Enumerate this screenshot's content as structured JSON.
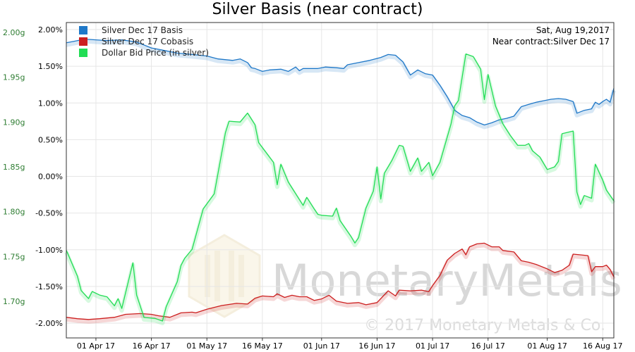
{
  "chart_data": {
    "type": "line",
    "title": "Silver Basis (near contract)",
    "annotation": {
      "date": "Sat, Aug 19,2017",
      "contract": "Near contract:Silver Dec 17"
    },
    "legend_position": "top-left",
    "grid": true,
    "watermark": {
      "brand": "MonetaryMetals",
      "copyright": "© 2017 Monetary Metals & Co."
    },
    "x_ticks": [
      "01 Apr 17",
      "16 Apr 17",
      "01 May 17",
      "16 May 17",
      "01 Jun 17",
      "16 Jun 17",
      "01 Jul 17",
      "16 Jul 17",
      "01 Aug 17",
      "16 Aug 17"
    ],
    "x_range": [
      "2017-03-24",
      "2017-08-19"
    ],
    "y_right": {
      "ticks": [
        "2.00%",
        "1.50%",
        "1.00%",
        "0.50%",
        "0.00%",
        "-0.50%",
        "-1.00%",
        "-1.50%",
        "-2.00%"
      ],
      "range": [
        -2.0,
        2.0
      ]
    },
    "y_left": {
      "ticks": [
        "2.00g",
        "1.95g",
        "1.90g",
        "1.85g",
        "1.80g",
        "1.75g",
        "1.70g"
      ],
      "range": [
        1.685,
        2.005
      ]
    },
    "series": [
      {
        "name": "Silver Dec 17 Basis",
        "color": "#1f78c8",
        "axis": "right",
        "points": [
          [
            "2017-03-24",
            1.82
          ],
          [
            "2017-03-26",
            1.84
          ],
          [
            "2017-03-29",
            1.87
          ],
          [
            "2017-04-01",
            1.86
          ],
          [
            "2017-04-04",
            1.85
          ],
          [
            "2017-04-08",
            1.86
          ],
          [
            "2017-04-12",
            1.83
          ],
          [
            "2017-04-16",
            1.75
          ],
          [
            "2017-04-19",
            1.72
          ],
          [
            "2017-04-23",
            1.68
          ],
          [
            "2017-04-27",
            1.66
          ],
          [
            "2017-05-01",
            1.64
          ],
          [
            "2017-05-04",
            1.6
          ],
          [
            "2017-05-08",
            1.58
          ],
          [
            "2017-05-10",
            1.6
          ],
          [
            "2017-05-12",
            1.55
          ],
          [
            "2017-05-13",
            1.48
          ],
          [
            "2017-05-14",
            1.47
          ],
          [
            "2017-05-16",
            1.43
          ],
          [
            "2017-05-18",
            1.45
          ],
          [
            "2017-05-21",
            1.46
          ],
          [
            "2017-05-23",
            1.43
          ],
          [
            "2017-05-25",
            1.49
          ],
          [
            "2017-05-26",
            1.44
          ],
          [
            "2017-05-27",
            1.47
          ],
          [
            "2017-05-31",
            1.47
          ],
          [
            "2017-06-02",
            1.49
          ],
          [
            "2017-06-05",
            1.48
          ],
          [
            "2017-06-07",
            1.47
          ],
          [
            "2017-06-08",
            1.52
          ],
          [
            "2017-06-11",
            1.55
          ],
          [
            "2017-06-14",
            1.58
          ],
          [
            "2017-06-17",
            1.62
          ],
          [
            "2017-06-19",
            1.66
          ],
          [
            "2017-06-21",
            1.65
          ],
          [
            "2017-06-23",
            1.56
          ],
          [
            "2017-06-25",
            1.38
          ],
          [
            "2017-06-27",
            1.45
          ],
          [
            "2017-06-29",
            1.4
          ],
          [
            "2017-07-01",
            1.38
          ],
          [
            "2017-07-03",
            1.24
          ],
          [
            "2017-07-05",
            1.08
          ],
          [
            "2017-07-07",
            0.9
          ],
          [
            "2017-07-09",
            0.83
          ],
          [
            "2017-07-11",
            0.8
          ],
          [
            "2017-07-13",
            0.74
          ],
          [
            "2017-07-15",
            0.7
          ],
          [
            "2017-07-17",
            0.73
          ],
          [
            "2017-07-19",
            0.77
          ],
          [
            "2017-07-21",
            0.79
          ],
          [
            "2017-07-23",
            0.82
          ],
          [
            "2017-07-25",
            0.95
          ],
          [
            "2017-07-27",
            0.98
          ],
          [
            "2017-07-29",
            1.01
          ],
          [
            "2017-07-31",
            1.03
          ],
          [
            "2017-08-02",
            1.05
          ],
          [
            "2017-08-04",
            1.06
          ],
          [
            "2017-08-06",
            1.05
          ],
          [
            "2017-08-08",
            1.02
          ],
          [
            "2017-08-09",
            0.86
          ],
          [
            "2017-08-11",
            0.9
          ],
          [
            "2017-08-13",
            0.92
          ],
          [
            "2017-08-14",
            1.01
          ],
          [
            "2017-08-15",
            0.98
          ],
          [
            "2017-08-16",
            1.02
          ],
          [
            "2017-08-17",
            1.05
          ],
          [
            "2017-08-18",
            1.01
          ],
          [
            "2017-08-19",
            1.2
          ]
        ]
      },
      {
        "name": "Silver Dec 17 Cobasis",
        "color": "#cc1f1f",
        "axis": "right",
        "points": [
          [
            "2017-03-24",
            -1.92
          ],
          [
            "2017-03-27",
            -1.94
          ],
          [
            "2017-03-30",
            -1.95
          ],
          [
            "2017-04-02",
            -1.94
          ],
          [
            "2017-04-06",
            -1.92
          ],
          [
            "2017-04-09",
            -1.88
          ],
          [
            "2017-04-13",
            -1.87
          ],
          [
            "2017-04-16",
            -1.88
          ],
          [
            "2017-04-18",
            -1.9
          ],
          [
            "2017-04-21",
            -1.92
          ],
          [
            "2017-04-24",
            -1.86
          ],
          [
            "2017-04-27",
            -1.85
          ],
          [
            "2017-04-28",
            -1.86
          ],
          [
            "2017-05-01",
            -1.81
          ],
          [
            "2017-05-05",
            -1.76
          ],
          [
            "2017-05-09",
            -1.73
          ],
          [
            "2017-05-12",
            -1.74
          ],
          [
            "2017-05-14",
            -1.66
          ],
          [
            "2017-05-16",
            -1.63
          ],
          [
            "2017-05-19",
            -1.64
          ],
          [
            "2017-05-20",
            -1.6
          ],
          [
            "2017-05-22",
            -1.65
          ],
          [
            "2017-05-24",
            -1.62
          ],
          [
            "2017-05-26",
            -1.64
          ],
          [
            "2017-05-28",
            -1.64
          ],
          [
            "2017-05-30",
            -1.69
          ],
          [
            "2017-06-01",
            -1.67
          ],
          [
            "2017-06-03",
            -1.62
          ],
          [
            "2017-06-05",
            -1.7
          ],
          [
            "2017-06-08",
            -1.73
          ],
          [
            "2017-06-11",
            -1.72
          ],
          [
            "2017-06-13",
            -1.75
          ],
          [
            "2017-06-16",
            -1.72
          ],
          [
            "2017-06-19",
            -1.56
          ],
          [
            "2017-06-21",
            -1.63
          ],
          [
            "2017-06-22",
            -1.55
          ],
          [
            "2017-06-25",
            -1.56
          ],
          [
            "2017-06-28",
            -1.55
          ],
          [
            "2017-06-30",
            -1.57
          ],
          [
            "2017-07-01",
            -1.49
          ],
          [
            "2017-07-03",
            -1.35
          ],
          [
            "2017-07-05",
            -1.14
          ],
          [
            "2017-07-07",
            -1.05
          ],
          [
            "2017-07-09",
            -0.99
          ],
          [
            "2017-07-10",
            -1.07
          ],
          [
            "2017-07-11",
            -0.96
          ],
          [
            "2017-07-13",
            -0.92
          ],
          [
            "2017-07-15",
            -0.91
          ],
          [
            "2017-07-17",
            -0.96
          ],
          [
            "2017-07-19",
            -0.96
          ],
          [
            "2017-07-20",
            -1.01
          ],
          [
            "2017-07-23",
            -1.03
          ],
          [
            "2017-07-25",
            -1.15
          ],
          [
            "2017-07-27",
            -1.17
          ],
          [
            "2017-07-29",
            -1.2
          ],
          [
            "2017-08-01",
            -1.26
          ],
          [
            "2017-08-03",
            -1.31
          ],
          [
            "2017-08-05",
            -1.28
          ],
          [
            "2017-08-07",
            -1.21
          ],
          [
            "2017-08-08",
            -1.06
          ],
          [
            "2017-08-10",
            -1.07
          ],
          [
            "2017-08-12",
            -1.08
          ],
          [
            "2017-08-13",
            -1.3
          ],
          [
            "2017-08-14",
            -1.23
          ],
          [
            "2017-08-16",
            -1.23
          ],
          [
            "2017-08-17",
            -1.21
          ],
          [
            "2017-08-18",
            -1.27
          ],
          [
            "2017-08-19",
            -1.37
          ]
        ]
      },
      {
        "name": "Dollar Bid Price (in silver)",
        "color": "#22dd55",
        "axis": "left",
        "points": [
          [
            "2017-03-24",
            1.757
          ],
          [
            "2017-03-27",
            1.728
          ],
          [
            "2017-03-28",
            1.712
          ],
          [
            "2017-03-30",
            1.703
          ],
          [
            "2017-03-31",
            1.711
          ],
          [
            "2017-04-02",
            1.707
          ],
          [
            "2017-04-04",
            1.705
          ],
          [
            "2017-04-06",
            1.695
          ],
          [
            "2017-04-07",
            1.703
          ],
          [
            "2017-04-08",
            1.692
          ],
          [
            "2017-04-11",
            1.743
          ],
          [
            "2017-04-12",
            1.707
          ],
          [
            "2017-04-14",
            1.682
          ],
          [
            "2017-04-17",
            1.681
          ],
          [
            "2017-04-19",
            1.678
          ],
          [
            "2017-04-20",
            1.694
          ],
          [
            "2017-04-23",
            1.722
          ],
          [
            "2017-04-24",
            1.74
          ],
          [
            "2017-04-25",
            1.748
          ],
          [
            "2017-04-27",
            1.758
          ],
          [
            "2017-04-30",
            1.803
          ],
          [
            "2017-05-03",
            1.82
          ],
          [
            "2017-05-06",
            1.888
          ],
          [
            "2017-05-07",
            1.901
          ],
          [
            "2017-05-10",
            1.9
          ],
          [
            "2017-05-12",
            1.91
          ],
          [
            "2017-05-14",
            1.897
          ],
          [
            "2017-05-15",
            1.877
          ],
          [
            "2017-05-19",
            1.855
          ],
          [
            "2017-05-20",
            1.83
          ],
          [
            "2017-05-21",
            1.853
          ],
          [
            "2017-05-23",
            1.833
          ],
          [
            "2017-05-27",
            1.807
          ],
          [
            "2017-05-28",
            1.816
          ],
          [
            "2017-05-30",
            1.803
          ],
          [
            "2017-05-31",
            1.797
          ],
          [
            "2017-06-01",
            1.796
          ],
          [
            "2017-06-04",
            1.795
          ],
          [
            "2017-06-05",
            1.804
          ],
          [
            "2017-06-06",
            1.79
          ],
          [
            "2017-06-09",
            1.772
          ],
          [
            "2017-06-10",
            1.765
          ],
          [
            "2017-06-11",
            1.771
          ],
          [
            "2017-06-13",
            1.804
          ],
          [
            "2017-06-15",
            1.823
          ],
          [
            "2017-06-16",
            1.85
          ],
          [
            "2017-06-17",
            1.814
          ],
          [
            "2017-06-18",
            1.843
          ],
          [
            "2017-06-20",
            1.857
          ],
          [
            "2017-06-22",
            1.874
          ],
          [
            "2017-06-23",
            1.873
          ],
          [
            "2017-06-25",
            1.845
          ],
          [
            "2017-06-27",
            1.86
          ],
          [
            "2017-06-28",
            1.845
          ],
          [
            "2017-06-30",
            1.855
          ],
          [
            "2017-07-01",
            1.84
          ],
          [
            "2017-07-03",
            1.855
          ],
          [
            "2017-07-06",
            1.898
          ],
          [
            "2017-07-07",
            1.918
          ],
          [
            "2017-07-08",
            1.924
          ],
          [
            "2017-07-10",
            1.976
          ],
          [
            "2017-07-12",
            1.973
          ],
          [
            "2017-07-14",
            1.959
          ],
          [
            "2017-07-15",
            1.925
          ],
          [
            "2017-07-16",
            1.953
          ],
          [
            "2017-07-18",
            1.918
          ],
          [
            "2017-07-20",
            1.898
          ],
          [
            "2017-07-22",
            1.885
          ],
          [
            "2017-07-24",
            1.874
          ],
          [
            "2017-07-26",
            1.874
          ],
          [
            "2017-07-27",
            1.876
          ],
          [
            "2017-07-28",
            1.868
          ],
          [
            "2017-07-30",
            1.861
          ],
          [
            "2017-08-01",
            1.847
          ],
          [
            "2017-08-03",
            1.85
          ],
          [
            "2017-08-04",
            1.856
          ],
          [
            "2017-08-05",
            1.887
          ],
          [
            "2017-08-08",
            1.89
          ],
          [
            "2017-08-09",
            1.822
          ],
          [
            "2017-08-10",
            1.808
          ],
          [
            "2017-08-11",
            1.818
          ],
          [
            "2017-08-13",
            1.815
          ],
          [
            "2017-08-14",
            1.853
          ],
          [
            "2017-08-16",
            1.835
          ],
          [
            "2017-08-17",
            1.824
          ],
          [
            "2017-08-19",
            1.812
          ]
        ]
      }
    ]
  }
}
